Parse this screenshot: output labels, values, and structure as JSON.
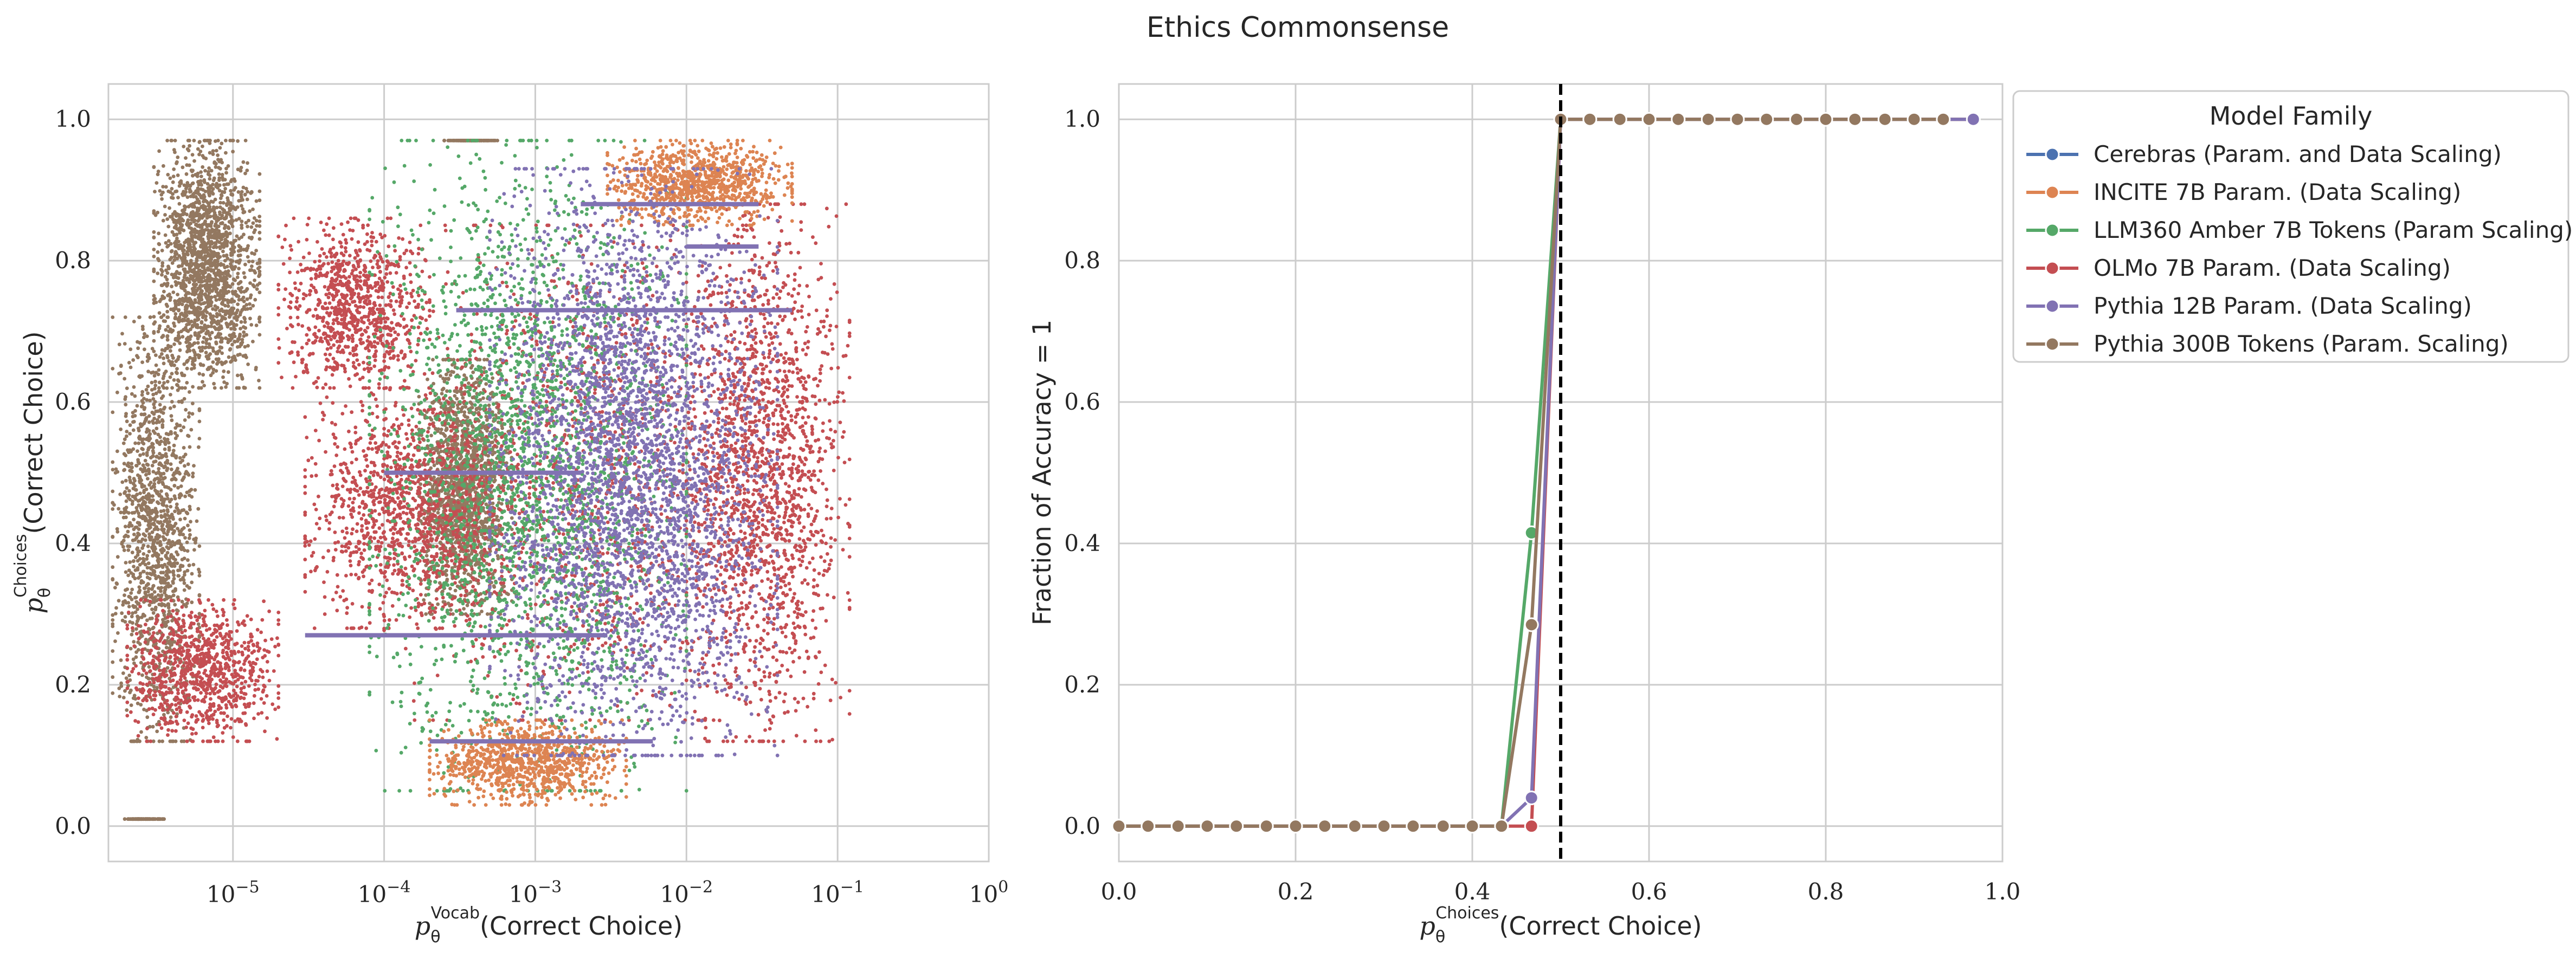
{
  "figure": {
    "title": "Ethics Commonsense"
  },
  "chart_data": [
    {
      "type": "scatter",
      "xscale": "log",
      "xlim": [
        1.5e-06,
        1.0
      ],
      "ylim": [
        -0.05,
        1.05
      ],
      "x_ticks": [
        {
          "value": 1e-05,
          "base": "10",
          "exp": "−5"
        },
        {
          "value": 0.0001,
          "base": "10",
          "exp": "−4"
        },
        {
          "value": 0.001,
          "base": "10",
          "exp": "−3"
        },
        {
          "value": 0.01,
          "base": "10",
          "exp": "−2"
        },
        {
          "value": 0.1,
          "base": "10",
          "exp": "−1"
        },
        {
          "value": 1,
          "base": "10",
          "exp": "0"
        }
      ],
      "y_ticks": [
        "0.0",
        "0.2",
        "0.4",
        "0.6",
        "0.8",
        "1.0"
      ],
      "y_tick_values": [
        0.0,
        0.2,
        0.4,
        0.6,
        0.8,
        1.0
      ],
      "xlabel": {
        "sym": "p",
        "sub": "θ",
        "sup": "Vocab",
        "text": "(Correct Choice)"
      },
      "ylabel": {
        "sym": "p",
        "sub": "θ",
        "sup": "Choices",
        "text": "(Correct Choice)"
      },
      "grid": true,
      "series": [
        {
          "name": "Pythia 300B Tokens (Param. Scaling)",
          "clusters": [
            {
              "x": [
                3e-06,
                1.5e-05
              ],
              "y": [
                0.62,
                0.97
              ],
              "n": 1800
            },
            {
              "x": [
                1.6e-06,
                6e-06
              ],
              "y": [
                0.12,
                0.72
              ],
              "n": 1400
            },
            {
              "x": [
                0.00017,
                0.0007
              ],
              "y": [
                0.3,
                0.66
              ],
              "n": 1500
            },
            {
              "x": [
                0.00025,
                0.0006
              ],
              "y": [
                0.99,
                1.0
              ],
              "n": 120
            },
            {
              "x": [
                1.8e-06,
                3.5e-06
              ],
              "y": [
                0.0,
                0.01
              ],
              "n": 80
            }
          ]
        },
        {
          "name": "OLMo 7B Param. (Data Scaling)",
          "clusters": [
            {
              "x": [
                2e-06,
                2e-05
              ],
              "y": [
                0.12,
                0.32
              ],
              "n": 900
            },
            {
              "x": [
                2e-05,
                0.0002
              ],
              "y": [
                0.62,
                0.86
              ],
              "n": 900
            },
            {
              "x": [
                3e-05,
                0.0006
              ],
              "y": [
                0.28,
                0.62
              ],
              "n": 1100
            },
            {
              "x": [
                0.01,
                0.12
              ],
              "y": [
                0.12,
                0.88
              ],
              "n": 1600
            },
            {
              "x": [
                0.0001,
                0.05
              ],
              "y": [
                0.15,
                0.85
              ],
              "n": 1300
            }
          ]
        },
        {
          "name": "LLM360 Amber 7B Tokens (Param Scaling)",
          "clusters": [
            {
              "x": [
                8e-05,
                0.01
              ],
              "y": [
                0.05,
                0.97
              ],
              "n": 2500
            }
          ]
        },
        {
          "name": "INCITE 7B Param. (Data Scaling)",
          "clusters": [
            {
              "x": [
                0.0002,
                0.004
              ],
              "y": [
                0.03,
                0.15
              ],
              "n": 900
            },
            {
              "x": [
                0.003,
                0.05
              ],
              "y": [
                0.85,
                0.97
              ],
              "n": 900
            }
          ]
        },
        {
          "name": "Pythia 12B Param. (Data Scaling)",
          "clusters": [
            {
              "x": [
                0.0005,
                0.04
              ],
              "y": [
                0.1,
                0.93
              ],
              "n": 3500
            }
          ],
          "hlines": [
            {
              "y": 0.12,
              "x": [
                0.0002,
                0.006
              ]
            },
            {
              "y": 0.27,
              "x": [
                3e-05,
                0.003
              ]
            },
            {
              "y": 0.5,
              "x": [
                0.0001,
                0.002
              ]
            },
            {
              "y": 0.73,
              "x": [
                0.0003,
                0.05
              ]
            },
            {
              "y": 0.88,
              "x": [
                0.002,
                0.03
              ]
            },
            {
              "y": 0.82,
              "x": [
                0.01,
                0.03
              ]
            }
          ]
        }
      ]
    },
    {
      "type": "line",
      "xlim": [
        0.0,
        1.0
      ],
      "ylim": [
        -0.05,
        1.05
      ],
      "x_ticks": [
        "0.0",
        "0.2",
        "0.4",
        "0.6",
        "0.8",
        "1.0"
      ],
      "x_tick_values": [
        0.0,
        0.2,
        0.4,
        0.6,
        0.8,
        1.0
      ],
      "y_ticks": [
        "0.0",
        "0.2",
        "0.4",
        "0.6",
        "0.8",
        "1.0"
      ],
      "y_tick_values": [
        0.0,
        0.2,
        0.4,
        0.6,
        0.8,
        1.0
      ],
      "ylabel": "Fraction of Accuracy = 1",
      "xlabel": {
        "sym": "p",
        "sub": "θ",
        "sup": "Choices",
        "text": "(Correct Choice)"
      },
      "vline_x": 0.5,
      "grid": true,
      "x": [
        0.0,
        0.033,
        0.067,
        0.1,
        0.133,
        0.167,
        0.2,
        0.233,
        0.267,
        0.3,
        0.333,
        0.367,
        0.4,
        0.433,
        0.467,
        0.5,
        0.533,
        0.567,
        0.6,
        0.633,
        0.667,
        0.7,
        0.733,
        0.767,
        0.8,
        0.833,
        0.867,
        0.9,
        0.933,
        0.967
      ],
      "series": [
        {
          "name": "Cerebras (Param. and Data Scaling)",
          "x": [
            0.0
          ],
          "y": [
            0.0
          ]
        },
        {
          "name": "INCITE 7B Param. (Data Scaling)",
          "x": [
            0.0
          ],
          "y": [
            0.0
          ]
        },
        {
          "name": "LLM360 Amber 7B Tokens (Param Scaling)",
          "x": [
            0.0,
            0.433,
            0.467,
            0.5,
            0.967
          ],
          "y": [
            0.0,
            0.0,
            0.415,
            1.0,
            1.0
          ]
        },
        {
          "name": "OLMo 7B Param. (Data Scaling)",
          "x": [
            0.0,
            0.433,
            0.467,
            0.5,
            0.967
          ],
          "y": [
            0.0,
            0.0,
            0.0,
            1.0,
            1.0
          ]
        },
        {
          "name": "Pythia 12B Param. (Data Scaling)",
          "x": [
            0.0,
            0.433,
            0.467,
            0.5,
            0.967
          ],
          "y": [
            0.0,
            0.0,
            0.04,
            1.0,
            1.0
          ]
        },
        {
          "name": "Pythia 300B Tokens (Param. Scaling)",
          "x": [
            0.0,
            0.033,
            0.067,
            0.1,
            0.133,
            0.167,
            0.2,
            0.233,
            0.267,
            0.3,
            0.333,
            0.367,
            0.4,
            0.433,
            0.467,
            0.5,
            0.533,
            0.567,
            0.6,
            0.633,
            0.667,
            0.7,
            0.733,
            0.767,
            0.8,
            0.833,
            0.867,
            0.9,
            0.933
          ],
          "y": [
            0,
            0,
            0,
            0,
            0,
            0,
            0,
            0,
            0,
            0,
            0,
            0,
            0,
            0,
            0.285,
            1,
            1,
            1,
            1,
            1,
            1,
            1,
            1,
            1,
            1,
            1,
            1,
            1,
            1
          ]
        }
      ]
    }
  ],
  "legend": {
    "title": "Model Family",
    "placement": "outside-right",
    "entries": [
      {
        "label": "Cerebras (Param. and Data Scaling)",
        "color": "#4c72b0"
      },
      {
        "label": "INCITE 7B Param. (Data Scaling)",
        "color": "#dd8452"
      },
      {
        "label": "LLM360 Amber 7B Tokens (Param Scaling)",
        "color": "#55a868"
      },
      {
        "label": "OLMo 7B Param. (Data Scaling)",
        "color": "#c44e52"
      },
      {
        "label": "Pythia 12B Param. (Data Scaling)",
        "color": "#8172b3"
      },
      {
        "label": "Pythia 300B Tokens (Param. Scaling)",
        "color": "#937860"
      }
    ]
  },
  "colors": {
    "grid": "#cccccc",
    "axes_edge": "#cccccc",
    "vline": "#000000"
  }
}
